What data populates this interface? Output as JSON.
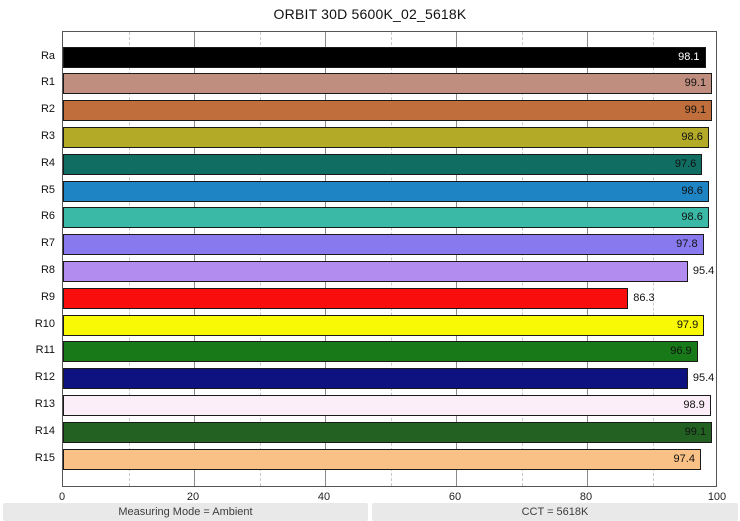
{
  "title": "ORBIT 30D 5600K_02_5618K",
  "footer": {
    "left": "Measuring Mode = Ambient",
    "right": "CCT = 5618K"
  },
  "chart_data": {
    "type": "bar",
    "orientation": "horizontal",
    "title": "ORBIT 30D 5600K_02_5618K",
    "categories": [
      "Ra",
      "R1",
      "R2",
      "R3",
      "R4",
      "R5",
      "R6",
      "R7",
      "R8",
      "R9",
      "R10",
      "R11",
      "R12",
      "R13",
      "R14",
      "R15"
    ],
    "values": [
      98.1,
      99.1,
      99.1,
      98.6,
      97.6,
      98.6,
      98.6,
      97.8,
      95.4,
      86.3,
      97.9,
      96.9,
      95.4,
      98.9,
      99.1,
      97.4
    ],
    "bar_colors": [
      "#000000",
      "#bf8e7e",
      "#c06f3c",
      "#b3ab28",
      "#0f6d62",
      "#1e84c4",
      "#3ab9a6",
      "#8879ee",
      "#b38cef",
      "#fa0d0d",
      "#f9f906",
      "#177917",
      "#0d1280",
      "#fceef8",
      "#226122",
      "#f9c185"
    ],
    "value_text_colors": [
      "#ffffff",
      "#111111",
      "#111111",
      "#111111",
      "#111111",
      "#111111",
      "#111111",
      "#111111",
      "#111111",
      "#111111",
      "#111111",
      "#111111",
      "#111111",
      "#111111",
      "#111111",
      "#111111"
    ],
    "value_label_placement": [
      "inside",
      "inside",
      "inside",
      "inside",
      "inside",
      "inside",
      "inside",
      "inside",
      "outside",
      "outside",
      "inside",
      "inside",
      "outside",
      "inside",
      "inside",
      "inside"
    ],
    "xlabel": "",
    "ylabel": "",
    "xlim": [
      0,
      100
    ],
    "x_ticks": [
      0,
      20,
      40,
      60,
      80,
      100
    ],
    "minor_gridlines": [
      10,
      30,
      50,
      70,
      90
    ],
    "grid": "vertical",
    "legend": "none"
  }
}
